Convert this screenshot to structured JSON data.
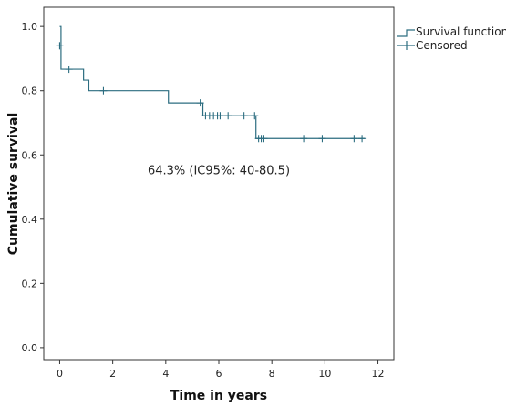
{
  "chart_data": {
    "type": "line",
    "subtype": "kaplan-meier",
    "title": "",
    "xlabel": "Time in years",
    "ylabel": "Cumulative survival",
    "xlim": [
      -0.6,
      12.6
    ],
    "ylim": [
      -0.04,
      1.06
    ],
    "x_ticks": [
      0,
      2,
      4,
      6,
      8,
      10,
      12
    ],
    "y_ticks": [
      0.0,
      0.2,
      0.4,
      0.6,
      0.8,
      1.0
    ],
    "x_tick_labels": [
      "0",
      "2",
      "4",
      "6",
      "8",
      "10",
      "12"
    ],
    "y_tick_labels": [
      "0.0",
      "0.2",
      "0.4",
      "0.6",
      "0.8",
      "1.0"
    ],
    "grid": false,
    "legend_position": "outside-top-right",
    "legend": [
      "Survival function",
      "Censored"
    ],
    "series": [
      {
        "name": "Survival function",
        "color": "#2c6d80",
        "steps": [
          {
            "x": 0.0,
            "y": 1.0
          },
          {
            "x": 0.05,
            "y": 0.867
          },
          {
            "x": 0.9,
            "y": 0.833
          },
          {
            "x": 1.1,
            "y": 0.8
          },
          {
            "x": 4.1,
            "y": 0.762
          },
          {
            "x": 5.4,
            "y": 0.722
          },
          {
            "x": 7.4,
            "y": 0.651
          }
        ],
        "end_x": 11.5
      },
      {
        "name": "Censored",
        "color": "#2c6d80",
        "points": [
          {
            "x": 0.0,
            "y": 0.94
          },
          {
            "x": 0.35,
            "y": 0.867
          },
          {
            "x": 1.65,
            "y": 0.8
          },
          {
            "x": 5.3,
            "y": 0.762
          },
          {
            "x": 5.5,
            "y": 0.722
          },
          {
            "x": 5.65,
            "y": 0.722
          },
          {
            "x": 5.8,
            "y": 0.722
          },
          {
            "x": 5.95,
            "y": 0.722
          },
          {
            "x": 6.05,
            "y": 0.722
          },
          {
            "x": 6.35,
            "y": 0.722
          },
          {
            "x": 6.95,
            "y": 0.722
          },
          {
            "x": 7.35,
            "y": 0.722
          },
          {
            "x": 7.5,
            "y": 0.651
          },
          {
            "x": 7.6,
            "y": 0.651
          },
          {
            "x": 7.7,
            "y": 0.651
          },
          {
            "x": 9.2,
            "y": 0.651
          },
          {
            "x": 9.9,
            "y": 0.651
          },
          {
            "x": 11.1,
            "y": 0.651
          },
          {
            "x": 11.4,
            "y": 0.651
          }
        ]
      }
    ],
    "annotations": [
      {
        "text": "64.3% (IC95%: 40-80.5)",
        "x": 6.0,
        "y": 0.54
      }
    ],
    "colors": {
      "line": "#2c6d80",
      "frame": "#333333",
      "background": "#ffffff"
    }
  }
}
